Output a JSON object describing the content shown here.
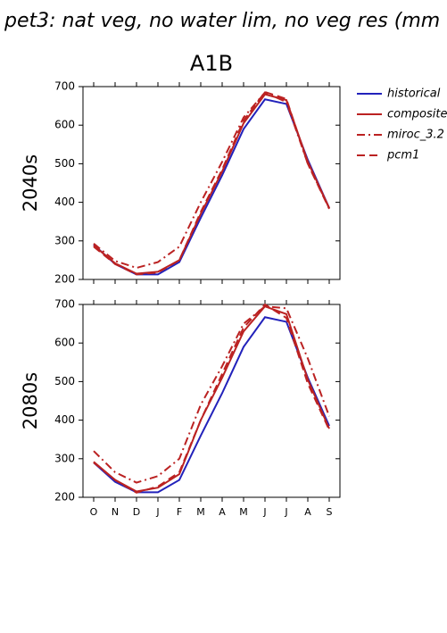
{
  "chart_data": [
    {
      "type": "line",
      "title": "pet3: nat veg, no water lim, no veg res (mm",
      "subtitle": "A1B",
      "ylabel": "2040s",
      "categories": [
        null,
        null,
        null,
        null,
        null,
        null,
        null,
        null,
        null,
        null,
        null,
        null
      ],
      "ylim": [
        200,
        700
      ],
      "yticks": [
        200,
        300,
        400,
        500,
        600,
        700
      ],
      "legend": "outside-right",
      "series": [
        {
          "name": "historical",
          "color": "#2222bb",
          "dash": "solid",
          "values": [
            290,
            240,
            213,
            213,
            245,
            360,
            470,
            590,
            667,
            655,
            510,
            385
          ]
        },
        {
          "name": "composite",
          "color": "#bb2222",
          "dash": "solid",
          "values": [
            288,
            242,
            215,
            220,
            250,
            370,
            480,
            605,
            680,
            665,
            505,
            385
          ]
        },
        {
          "name": "miroc_3.2",
          "color": "#bb2222",
          "dash": "dashdot",
          "values": [
            293,
            248,
            230,
            245,
            285,
            400,
            505,
            620,
            685,
            660,
            500,
            385
          ]
        },
        {
          "name": "pcm1",
          "color": "#bb2222",
          "dash": "dash",
          "values": [
            285,
            240,
            213,
            218,
            250,
            375,
            485,
            612,
            686,
            668,
            500,
            383
          ]
        }
      ]
    },
    {
      "type": "line",
      "ylabel": "2080s",
      "categories": [
        "O",
        "N",
        "D",
        "J",
        "F",
        "M",
        "A",
        "M",
        "J",
        "J",
        "A",
        "S"
      ],
      "ylim": [
        200,
        700
      ],
      "yticks": [
        200,
        300,
        400,
        500,
        600,
        700
      ],
      "series": [
        {
          "color": "#2222bb",
          "dash": "solid",
          "values": [
            290,
            240,
            213,
            213,
            245,
            360,
            470,
            590,
            667,
            655,
            510,
            385
          ]
        },
        {
          "color": "#bb2222",
          "dash": "solid",
          "values": [
            292,
            245,
            215,
            225,
            260,
            400,
            510,
            630,
            695,
            675,
            505,
            378
          ]
        },
        {
          "color": "#bb2222",
          "dash": "dashdot",
          "values": [
            320,
            265,
            238,
            255,
            300,
            440,
            540,
            650,
            695,
            690,
            560,
            410
          ]
        },
        {
          "color": "#bb2222",
          "dash": "dash",
          "values": [
            290,
            245,
            212,
            228,
            265,
            400,
            520,
            640,
            700,
            665,
            495,
            375
          ]
        }
      ]
    }
  ]
}
